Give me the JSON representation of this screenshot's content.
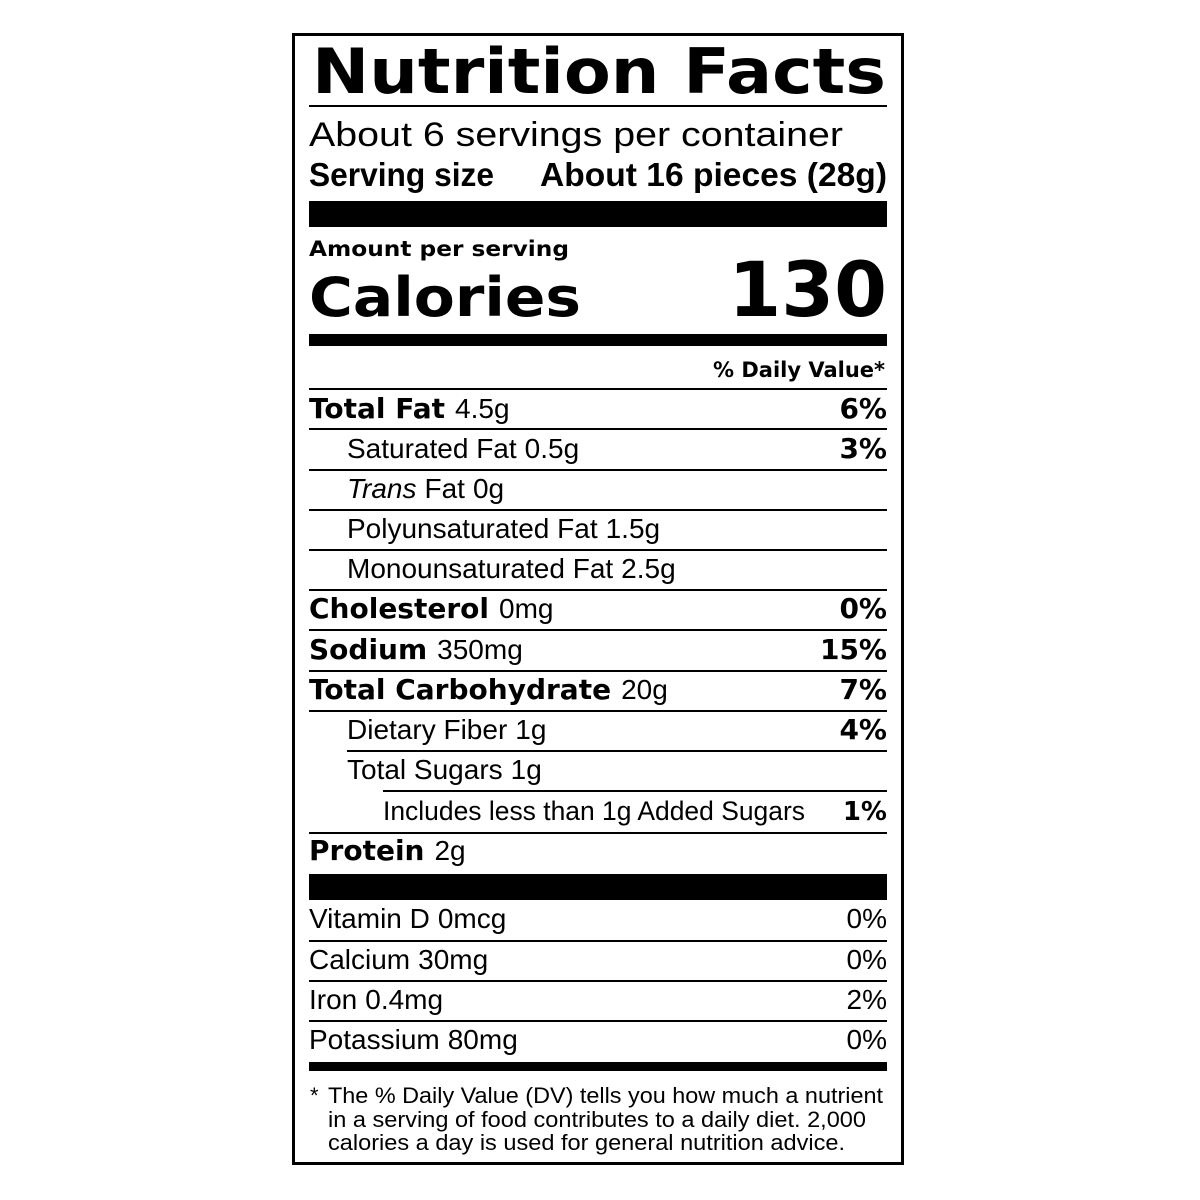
{
  "title": "Nutrition Facts",
  "servings_per_container": "About 6 servings per container",
  "serving_size": {
    "label": "Serving size",
    "value": "About 16 pieces (28g)"
  },
  "amount_per_serving": "Amount per serving",
  "calories": {
    "label": "Calories",
    "value": 130
  },
  "daily_value_header": "% Daily Value*",
  "nutrients": [
    {
      "name": "Total Fat",
      "amount": "4.5g",
      "daily_value": "6%"
    },
    {
      "name": "Saturated Fat",
      "amount": "0.5g",
      "daily_value": "3%"
    },
    {
      "name_italic": "Trans",
      "name": "Fat",
      "amount": "0g"
    },
    {
      "name": "Polyunsaturated Fat",
      "amount": "1.5g"
    },
    {
      "name": "Monounsaturated Fat",
      "amount": "2.5g"
    },
    {
      "name": "Cholesterol",
      "amount": "0mg",
      "daily_value": "0%"
    },
    {
      "name": "Sodium",
      "amount": "350mg",
      "daily_value": "15%"
    },
    {
      "name": "Total Carbohydrate",
      "amount": "20g",
      "daily_value": "7%"
    },
    {
      "name": "Dietary Fiber",
      "amount": "1g",
      "daily_value": "4%"
    },
    {
      "name": "Total Sugars",
      "amount": "1g"
    },
    {
      "name": "Includes less than 1g Added Sugars",
      "daily_value": "1%"
    },
    {
      "name": "Protein",
      "amount": "2g"
    }
  ],
  "vitamins": [
    {
      "name": "Vitamin D",
      "amount": "0mcg",
      "daily_value": "0%"
    },
    {
      "name": "Calcium",
      "amount": "30mg",
      "daily_value": "0%"
    },
    {
      "name": "Iron",
      "amount": "0.4mg",
      "daily_value": "2%"
    },
    {
      "name": "Potassium",
      "amount": "80mg",
      "daily_value": "0%"
    }
  ],
  "footnote": {
    "marker": "*",
    "lines": [
      "The % Daily Value (DV) tells you how much a nutrient",
      "in a serving of food contributes to a daily diet. 2,000",
      "calories a day is used for general nutrition advice."
    ]
  }
}
